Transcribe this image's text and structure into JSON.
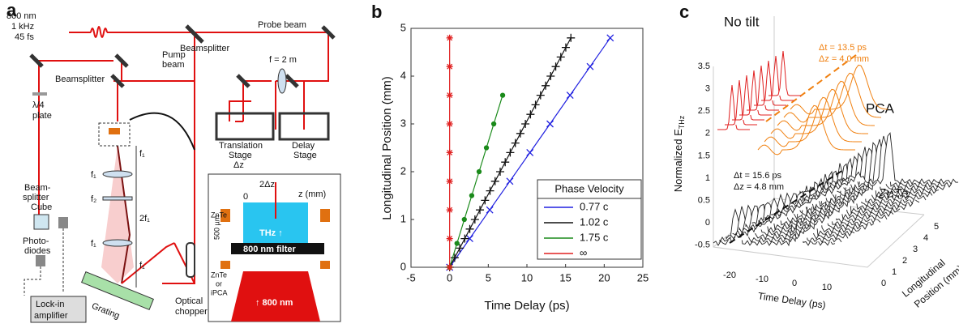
{
  "panel_a": {
    "label": "a",
    "laser": [
      "800 nm",
      "1 kHz",
      "45 fs"
    ],
    "probe_beam": "Probe beam",
    "beamsplitter_top": "Beamsplitter",
    "pump_beam": [
      "Pump",
      "beam"
    ],
    "focal_length": "f = 2 m",
    "beamsplitter_left": "Beamsplitter",
    "waveplate": [
      "λ/4",
      "plate"
    ],
    "translation_stage": [
      "Translation",
      "Stage",
      "Δz"
    ],
    "delay_stage": [
      "Delay",
      "Stage"
    ],
    "cube": [
      "Beam-",
      "splitter",
      "Cube"
    ],
    "photodiodes": [
      "Photo-",
      "diodes"
    ],
    "lockin": [
      "Lock-in",
      "amplifier"
    ],
    "grating": "Grating",
    "chopper": [
      "Optical",
      "chopper"
    ],
    "lens_labels": [
      "f₁",
      "f₁",
      "f₂",
      "2f₁",
      "f₁",
      "f₁"
    ],
    "inset": {
      "shift": "2Δz",
      "zero": "0",
      "axis": "z (mm)",
      "znte_top": "ZnTe",
      "thz": "THz ↑",
      "thickness": "500 µm",
      "filter": "800 nm filter",
      "emitter": [
        "ZnTe",
        "or",
        "iPCA"
      ],
      "pump": "↑\n800 nm"
    }
  },
  "chart_data": {
    "type": "scatter",
    "label": "b",
    "xlabel": "Time Delay (ps)",
    "ylabel": "Longitudinal Position (mm)",
    "xlim": [
      -5,
      25
    ],
    "ylim": [
      0,
      5
    ],
    "xticks": [
      -5,
      0,
      5,
      10,
      15,
      20,
      25
    ],
    "yticks": [
      0,
      1,
      2,
      3,
      4,
      5
    ],
    "legend_title": "Phase Velocity",
    "legend": "lower right",
    "series": [
      {
        "name": "0.77 c",
        "color": "#2020e0",
        "marker": "x",
        "x": [
          0,
          2.6,
          5.19,
          7.79,
          10.39,
          12.99,
          15.58,
          18.18,
          20.78
        ],
        "values": [
          0,
          0.6,
          1.2,
          1.8,
          2.4,
          3.0,
          3.6,
          4.2,
          4.8
        ]
      },
      {
        "name": "1.02 c",
        "color": "#111111",
        "marker": "+",
        "x": [
          0,
          0.65,
          1.31,
          1.96,
          2.61,
          3.27,
          3.92,
          4.58,
          5.23,
          5.88,
          6.54,
          7.19,
          7.84,
          8.5,
          9.15,
          9.8,
          10.46,
          11.11,
          11.76,
          12.42,
          13.07,
          13.73,
          14.38,
          15.03,
          15.69
        ],
        "values": [
          0,
          0.2,
          0.4,
          0.6,
          0.8,
          1.0,
          1.2,
          1.4,
          1.6,
          1.8,
          2.0,
          2.2,
          2.4,
          2.6,
          2.8,
          3.0,
          3.2,
          3.4,
          3.6,
          3.8,
          4.0,
          4.2,
          4.4,
          4.6,
          4.8
        ]
      },
      {
        "name": "1.75 c",
        "color": "#1a8a1a",
        "marker": "o",
        "x": [
          0,
          0.95,
          1.9,
          2.86,
          3.81,
          4.76,
          5.71,
          6.86
        ],
        "values": [
          0,
          0.5,
          1.0,
          1.5,
          2.0,
          2.5,
          3.0,
          3.6
        ]
      },
      {
        "name": "∞",
        "color": "#e02020",
        "marker": "*",
        "x": [
          0,
          0,
          0,
          0,
          0,
          0,
          0,
          0,
          0
        ],
        "values": [
          0,
          0.6,
          1.2,
          1.8,
          2.4,
          3.0,
          3.6,
          4.2,
          4.8
        ]
      }
    ]
  },
  "panel_c": {
    "label": "c",
    "no_tilt": "No tilt",
    "pca_dt": "Δt = 13.5 ps",
    "pca_dz": "Δz = 4.0 mm",
    "pca": "PCA",
    "znte_dt": "Δt = 15.6 ps",
    "znte_dz": "Δz = 4.8 mm",
    "znte": "ZnTe",
    "ylabel": "Normalized E",
    "ylabel_sub": "THz",
    "yticks": [
      "3.5",
      "3",
      "2.5",
      "2",
      "1.5",
      "1",
      "0.5",
      "0",
      "-0.5"
    ],
    "xticks": [
      "-20",
      "-10",
      "0",
      "10"
    ],
    "xlabel": "Time Delay (ps)",
    "zticks": [
      "0",
      "1",
      "2",
      "3",
      "4",
      "5"
    ],
    "zlabel": [
      "Longitudinal",
      "Position (mm)"
    ]
  }
}
